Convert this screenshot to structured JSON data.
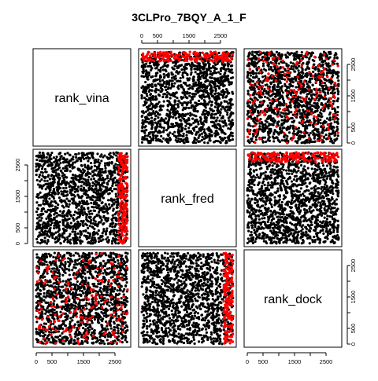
{
  "chart_data": {
    "type": "scatter",
    "title": "3CLPro_7BQY_A_1_F",
    "layout": "pairs-matrix",
    "variables": [
      "rank_vina",
      "rank_fred",
      "rank_dock"
    ],
    "axis_range": [
      0,
      2900
    ],
    "ticks": [
      0,
      500,
      1500,
      2500
    ],
    "tick_labels": [
      "0",
      "500",
      "1500",
      "2500"
    ],
    "grid": false,
    "legend": "none",
    "colors": {
      "background_points": "#000000",
      "highlight_points": "#ff0000",
      "frame": "#000000"
    },
    "points_per_panel": {
      "black": 1500,
      "red": 180
    },
    "top_rank_cutoff": 2600
  }
}
